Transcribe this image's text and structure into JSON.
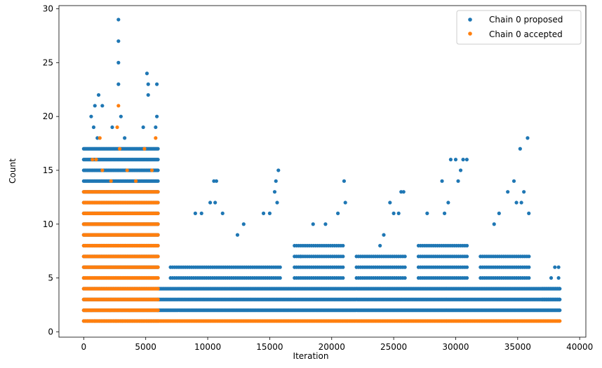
{
  "chart_data": {
    "type": "scatter",
    "title": "",
    "xlabel": "Iteration",
    "ylabel": "Count",
    "xlim": [
      -2000,
      40500
    ],
    "ylim": [
      -0.5,
      30.3
    ],
    "xticks": [
      0,
      5000,
      10000,
      15000,
      20000,
      25000,
      30000,
      35000,
      40000
    ],
    "yticks": [
      0,
      5,
      10,
      15,
      20,
      25,
      30
    ],
    "grid": false,
    "legend": "top-right",
    "series": [
      {
        "name": "Chain 0 proposed",
        "color": "#1f77b4",
        "marker": "circle",
        "segments": [
          {
            "x": [
              0,
              6000
            ],
            "y": [
              1,
              17
            ],
            "density": "high"
          },
          {
            "x": [
              6000,
              38400
            ],
            "y": [
              2,
              4
            ],
            "density": "high"
          },
          {
            "x": [
              7000,
              16000
            ],
            "y": [
              5,
              6
            ],
            "density": "medium"
          },
          {
            "x": [
              17000,
              21000
            ],
            "y": [
              5,
              8
            ],
            "density": "medium"
          },
          {
            "x": [
              22000,
              26000
            ],
            "y": [
              5,
              7
            ],
            "density": "medium"
          },
          {
            "x": [
              27000,
              31000
            ],
            "y": [
              5,
              8
            ],
            "density": "medium"
          },
          {
            "x": [
              32000,
              36000
            ],
            "y": [
              5,
              7
            ],
            "density": "medium"
          },
          {
            "x": [
              37000,
              38400
            ],
            "y": [
              3,
              4
            ],
            "density": "medium"
          }
        ],
        "points": [
          {
            "x": 2800,
            "y": 29
          },
          {
            "x": 2800,
            "y": 27
          },
          {
            "x": 2800,
            "y": 25
          },
          {
            "x": 2800,
            "y": 23
          },
          {
            "x": 5100,
            "y": 24
          },
          {
            "x": 5200,
            "y": 23
          },
          {
            "x": 5900,
            "y": 23
          },
          {
            "x": 5200,
            "y": 22
          },
          {
            "x": 1200,
            "y": 22
          },
          {
            "x": 900,
            "y": 21
          },
          {
            "x": 1500,
            "y": 21
          },
          {
            "x": 3000,
            "y": 20
          },
          {
            "x": 5900,
            "y": 20
          },
          {
            "x": 600,
            "y": 20
          },
          {
            "x": 2300,
            "y": 19
          },
          {
            "x": 800,
            "y": 19
          },
          {
            "x": 4800,
            "y": 19
          },
          {
            "x": 5800,
            "y": 19
          },
          {
            "x": 1100,
            "y": 18
          },
          {
            "x": 3300,
            "y": 18
          },
          {
            "x": 10500,
            "y": 14
          },
          {
            "x": 10700,
            "y": 14
          },
          {
            "x": 10200,
            "y": 12
          },
          {
            "x": 10600,
            "y": 12
          },
          {
            "x": 9000,
            "y": 11
          },
          {
            "x": 9500,
            "y": 11
          },
          {
            "x": 11200,
            "y": 11
          },
          {
            "x": 15700,
            "y": 15
          },
          {
            "x": 15500,
            "y": 14
          },
          {
            "x": 15400,
            "y": 13
          },
          {
            "x": 15600,
            "y": 12
          },
          {
            "x": 14500,
            "y": 11
          },
          {
            "x": 15000,
            "y": 11
          },
          {
            "x": 12400,
            "y": 9
          },
          {
            "x": 12900,
            "y": 10
          },
          {
            "x": 21000,
            "y": 14
          },
          {
            "x": 20500,
            "y": 11
          },
          {
            "x": 21100,
            "y": 12
          },
          {
            "x": 18500,
            "y": 10
          },
          {
            "x": 19500,
            "y": 10
          },
          {
            "x": 17500,
            "y": 7
          },
          {
            "x": 25600,
            "y": 13
          },
          {
            "x": 25800,
            "y": 13
          },
          {
            "x": 24700,
            "y": 12
          },
          {
            "x": 25000,
            "y": 11
          },
          {
            "x": 25400,
            "y": 11
          },
          {
            "x": 24200,
            "y": 9
          },
          {
            "x": 23900,
            "y": 8
          },
          {
            "x": 29600,
            "y": 16
          },
          {
            "x": 30000,
            "y": 16
          },
          {
            "x": 30600,
            "y": 16
          },
          {
            "x": 30900,
            "y": 16
          },
          {
            "x": 30400,
            "y": 15
          },
          {
            "x": 28900,
            "y": 14
          },
          {
            "x": 30200,
            "y": 14
          },
          {
            "x": 29400,
            "y": 12
          },
          {
            "x": 27700,
            "y": 11
          },
          {
            "x": 29100,
            "y": 11
          },
          {
            "x": 35800,
            "y": 18
          },
          {
            "x": 35200,
            "y": 17
          },
          {
            "x": 34700,
            "y": 14
          },
          {
            "x": 34200,
            "y": 13
          },
          {
            "x": 35500,
            "y": 13
          },
          {
            "x": 34900,
            "y": 12
          },
          {
            "x": 35300,
            "y": 12
          },
          {
            "x": 33500,
            "y": 11
          },
          {
            "x": 35900,
            "y": 11
          },
          {
            "x": 33100,
            "y": 10
          },
          {
            "x": 38000,
            "y": 6
          },
          {
            "x": 38300,
            "y": 6
          },
          {
            "x": 37700,
            "y": 5
          },
          {
            "x": 38300,
            "y": 5
          }
        ]
      },
      {
        "name": "Chain 0 accepted",
        "color": "#ff7f0e",
        "marker": "circle",
        "segments": [
          {
            "x": [
              0,
              6000
            ],
            "y": [
              1,
              13
            ],
            "density": "high"
          },
          {
            "x": [
              6000,
              38400
            ],
            "y": [
              1,
              1
            ],
            "density": "high"
          }
        ],
        "points": [
          {
            "x": 2800,
            "y": 21
          },
          {
            "x": 2700,
            "y": 19
          },
          {
            "x": 5800,
            "y": 18
          },
          {
            "x": 1300,
            "y": 18
          },
          {
            "x": 2900,
            "y": 17
          },
          {
            "x": 4900,
            "y": 17
          },
          {
            "x": 700,
            "y": 16
          },
          {
            "x": 1000,
            "y": 16
          },
          {
            "x": 3500,
            "y": 15
          },
          {
            "x": 5500,
            "y": 15
          },
          {
            "x": 1500,
            "y": 15
          },
          {
            "x": 4200,
            "y": 14
          },
          {
            "x": 2200,
            "y": 14
          },
          {
            "x": 300,
            "y": 1
          },
          {
            "x": 900,
            "y": 1
          },
          {
            "x": 1700,
            "y": 1
          },
          {
            "x": 2600,
            "y": 1
          },
          {
            "x": 3100,
            "y": 1
          },
          {
            "x": 200,
            "y": 2
          },
          {
            "x": 600,
            "y": 2
          },
          {
            "x": 2100,
            "y": 2
          },
          {
            "x": 3700,
            "y": 2
          }
        ]
      }
    ]
  }
}
